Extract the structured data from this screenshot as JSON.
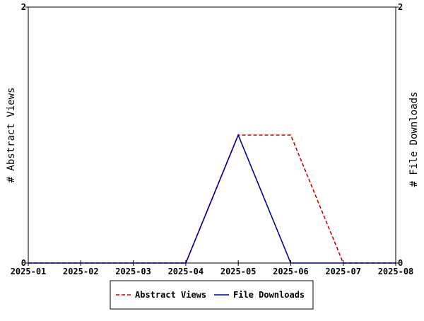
{
  "chart_data": {
    "type": "line",
    "title": "",
    "x": [
      "2025-01",
      "2025-02",
      "2025-03",
      "2025-04",
      "2025-05",
      "2025-06",
      "2025-07",
      "2025-08"
    ],
    "xlim": [
      "2025-01",
      "2025-08"
    ],
    "y_left": {
      "label": "# Abstract Views",
      "ylim": [
        0,
        2
      ],
      "ticks": [
        "0",
        "2"
      ]
    },
    "y_right": {
      "label": "# File Downloads",
      "ylim": [
        0,
        2
      ],
      "ticks": [
        "0",
        "2"
      ]
    },
    "series": [
      {
        "name": "Abstract Views",
        "axis": "left",
        "color": "#cc0000",
        "style": "dashed",
        "x": [
          "2025-01",
          "2025-02",
          "2025-03",
          "2025-04",
          "2025-05",
          "2025-06",
          "2025-07",
          "2025-08"
        ],
        "values": [
          0,
          0,
          0,
          0,
          1,
          1,
          0,
          0
        ]
      },
      {
        "name": "File Downloads",
        "axis": "right",
        "color": "#000099",
        "style": "solid",
        "x": [
          "2025-01",
          "2025-02",
          "2025-03",
          "2025-04",
          "2025-05",
          "2025-06",
          "2025-07",
          "2025-08"
        ],
        "values": [
          0,
          0,
          0,
          0,
          1,
          0,
          0,
          0
        ]
      }
    ],
    "grid": false,
    "legend_position": "bottom-center"
  }
}
